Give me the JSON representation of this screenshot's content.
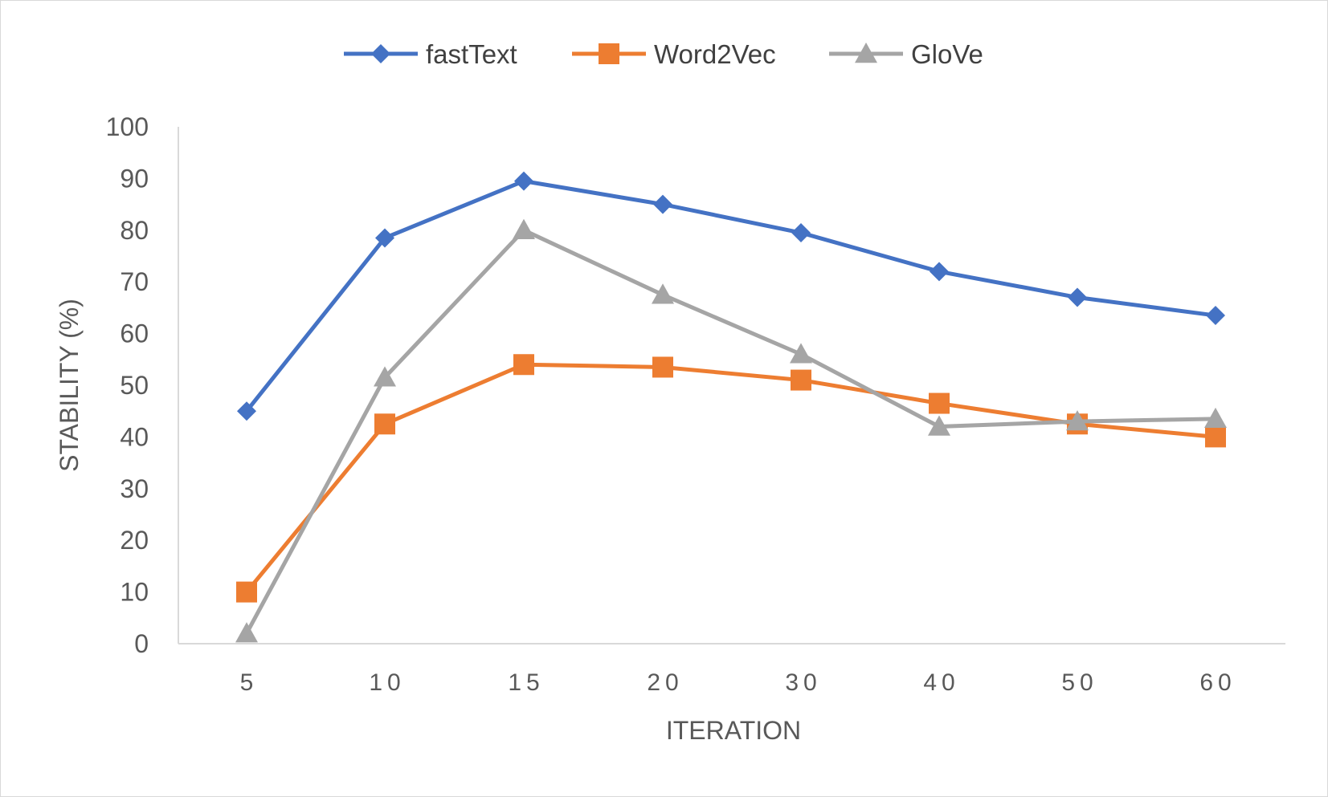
{
  "chart_data": {
    "type": "line",
    "categories": [
      "5",
      "10",
      "15",
      "20",
      "30",
      "40",
      "50",
      "60"
    ],
    "series": [
      {
        "name": "fastText",
        "color": "#4472c4",
        "marker": "diamond",
        "values": [
          45,
          78.5,
          89.5,
          85,
          79.5,
          72,
          67,
          63.5
        ]
      },
      {
        "name": "Word2Vec",
        "color": "#ed7d31",
        "marker": "square",
        "values": [
          10,
          42.5,
          54,
          53.5,
          51,
          46.5,
          42.5,
          40
        ]
      },
      {
        "name": "GloVe",
        "color": "#a5a5a5",
        "marker": "triangle",
        "values": [
          2,
          51.5,
          80,
          67.5,
          56,
          42,
          43,
          43.5
        ]
      }
    ],
    "yticks": [
      "0",
      "10",
      "20",
      "30",
      "40",
      "50",
      "60",
      "70",
      "80",
      "90",
      "100"
    ],
    "xlabel": "ITERATION",
    "ylabel": "STABILITY (%)",
    "ylim": [
      0,
      100
    ],
    "grid": false,
    "legend": "top-center"
  }
}
